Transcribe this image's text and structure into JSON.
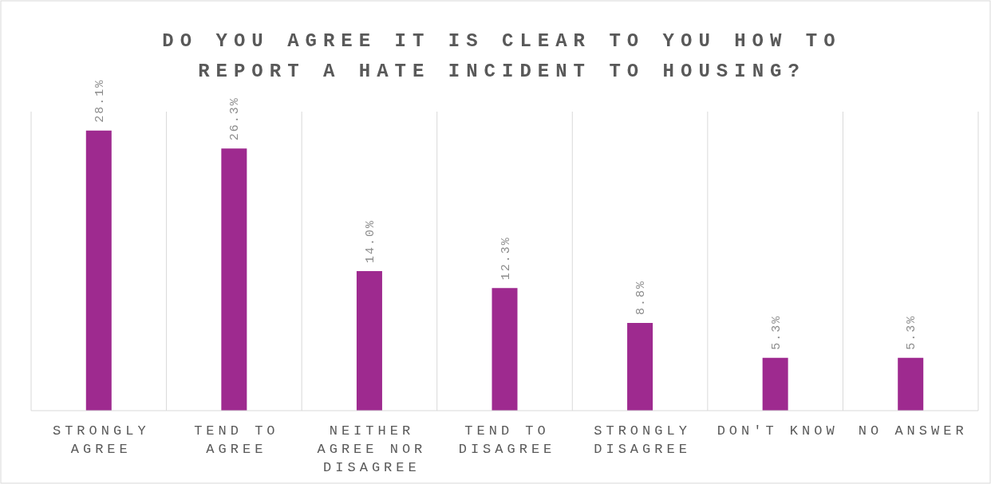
{
  "chart_data": {
    "type": "bar",
    "title": "DO YOU AGREE IT IS CLEAR TO YOU HOW TO REPORT A HATE INCIDENT TO HOUSING?",
    "categories": [
      "STRONGLY AGREE",
      "TEND TO AGREE",
      "NEITHER AGREE NOR DISAGREE",
      "TEND TO DISAGREE",
      "STRONGLY DISAGREE",
      "DON'T KNOW",
      "NO ANSWER"
    ],
    "values": [
      28.1,
      26.3,
      14.0,
      12.3,
      8.8,
      5.3,
      5.3
    ],
    "value_labels": [
      "28.1%",
      "26.3%",
      "14.0%",
      "12.3%",
      "8.8%",
      "5.3%",
      "5.3%"
    ],
    "color": "#9e2a8f",
    "ylim": [
      0,
      30
    ],
    "grid": "x",
    "tick_labels": "x"
  }
}
